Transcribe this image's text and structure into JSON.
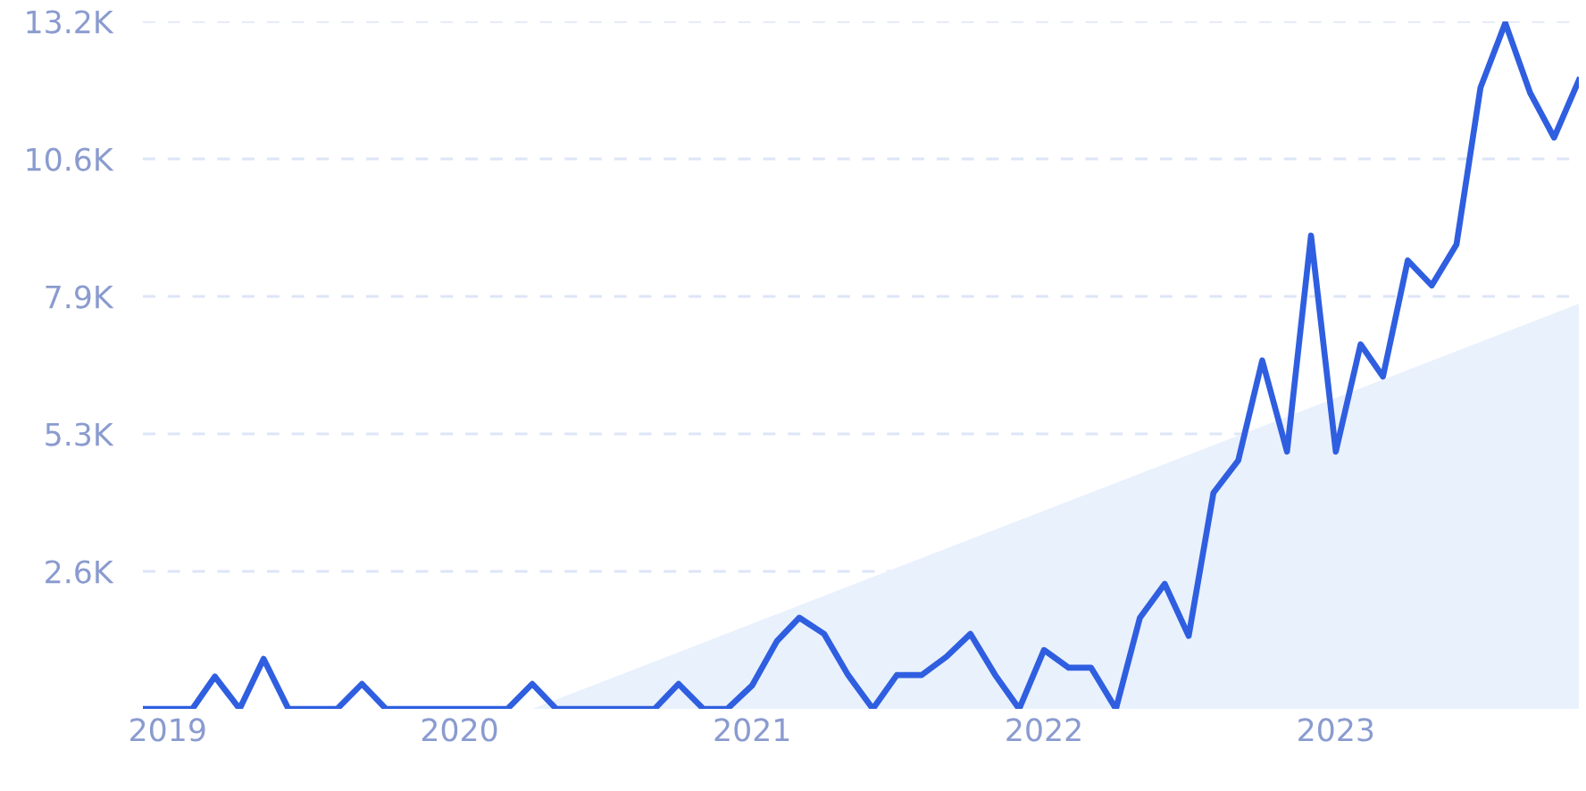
{
  "chart_data": {
    "type": "line",
    "x": [
      "2018-12",
      "2019-01",
      "2019-02",
      "2019-03",
      "2019-04",
      "2019-05",
      "2019-06",
      "2019-07",
      "2019-08",
      "2019-09",
      "2019-10",
      "2019-11",
      "2019-12",
      "2020-01",
      "2020-02",
      "2020-03",
      "2020-04",
      "2020-05",
      "2020-06",
      "2020-07",
      "2020-08",
      "2020-09",
      "2020-10",
      "2020-11",
      "2020-12",
      "2021-01",
      "2021-02",
      "2021-03",
      "2021-04",
      "2021-05",
      "2021-06",
      "2021-07",
      "2021-08",
      "2021-09",
      "2021-10",
      "2021-11",
      "2021-12",
      "2022-01",
      "2022-02",
      "2022-03",
      "2022-04",
      "2022-05",
      "2022-06",
      "2022-07",
      "2022-08",
      "2022-09",
      "2022-10",
      "2022-11",
      "2022-12",
      "2023-01",
      "2023-02",
      "2023-03",
      "2023-04",
      "2023-05",
      "2023-06",
      "2023-07",
      "2023-08",
      "2023-09",
      "2023-10",
      "2023-11"
    ],
    "series": [
      {
        "type": "area",
        "color": "#e9f1fd",
        "x": [
          "2020-04",
          "2023-11"
        ],
        "values": [
          0,
          7780
        ]
      },
      {
        "color": "#2f5fe0",
        "values": [
          0,
          0,
          0,
          620,
          0,
          960,
          0,
          0,
          0,
          480,
          0,
          0,
          0,
          0,
          0,
          0,
          480,
          0,
          0,
          0,
          0,
          0,
          480,
          0,
          0,
          450,
          1300,
          1750,
          1440,
          650,
          0,
          650,
          650,
          1000,
          1440,
          650,
          0,
          1130,
          790,
          790,
          0,
          1750,
          2400,
          1400,
          4150,
          4770,
          6690,
          4940,
          9090,
          4940,
          7000,
          6380,
          8610,
          8130,
          8920,
          11930,
          13170,
          11830,
          10970,
          12070
        ]
      }
    ],
    "xlim": [
      "2018-12",
      "2023-11"
    ],
    "xticks": [
      {
        "value": "2019-01",
        "label": "2019"
      },
      {
        "value": "2020-01",
        "label": "2020"
      },
      {
        "value": "2021-01",
        "label": "2021"
      },
      {
        "value": "2022-01",
        "label": "2022"
      },
      {
        "value": "2023-01",
        "label": "2023"
      }
    ],
    "ylim": [
      0,
      13200
    ],
    "yticks": [
      {
        "value": 2640,
        "label": "2.6K"
      },
      {
        "value": 5280,
        "label": "5.3K"
      },
      {
        "value": 7920,
        "label": "7.9K"
      },
      {
        "value": 10560,
        "label": "10.6K"
      },
      {
        "value": 13200,
        "label": "13.2K"
      }
    ],
    "grid": "y",
    "line_style": "solid",
    "marker": "none"
  }
}
